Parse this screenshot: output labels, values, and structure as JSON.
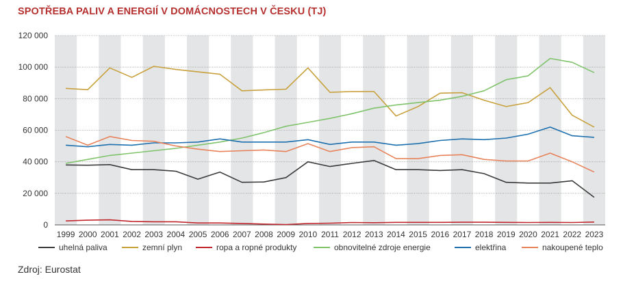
{
  "title": "SPOTŘEBA PALIV A ENERGIÍ V DOMÁCNOSTECH V ČESKU (TJ)",
  "source": "Zdroj: Eurostat",
  "chart_data": {
    "type": "line",
    "title": "SPOTŘEBA PALIV A ENERGIÍ V DOMÁCNOSTECH V ČESKU (TJ)",
    "xlabel": "",
    "ylabel": "",
    "ylim": [
      0,
      120000
    ],
    "yticks": [
      0,
      20000,
      40000,
      60000,
      80000,
      100000,
      120000
    ],
    "ytick_labels": [
      "0",
      "20 000",
      "40 000",
      "60 000",
      "80 000",
      "100 000",
      "120 000"
    ],
    "grid": "horizontal",
    "alternating_columns": true,
    "legend_position": "bottom",
    "x": [
      "1999",
      "2000",
      "2001",
      "2002",
      "2003",
      "2004",
      "2005",
      "2006",
      "2007",
      "2008",
      "2009",
      "2010",
      "2011",
      "2012",
      "2013",
      "2014",
      "2015",
      "2016",
      "2017",
      "2018",
      "2019",
      "2020",
      "2021",
      "2022",
      "2023"
    ],
    "series": [
      {
        "name": "uhelná paliva",
        "color": "#3a3a3a",
        "values": [
          38000,
          37800,
          38200,
          35000,
          35000,
          34000,
          29000,
          33500,
          27000,
          27200,
          30000,
          40000,
          37000,
          39000,
          40800,
          35000,
          35000,
          34500,
          35000,
          32500,
          27000,
          26500,
          26500,
          28000,
          17500
        ]
      },
      {
        "name": "zemní plyn",
        "color": "#c9a13c",
        "values": [
          86500,
          85700,
          99500,
          93500,
          100500,
          98500,
          97000,
          95500,
          85000,
          85500,
          86000,
          99500,
          84000,
          84500,
          84500,
          69000,
          75000,
          83500,
          83800,
          79000,
          75000,
          77500,
          87000,
          69500,
          62000
        ]
      },
      {
        "name": "ropa a ropné produkty",
        "color": "#c0272d",
        "values": [
          2500,
          3000,
          3200,
          2200,
          2000,
          2000,
          1200,
          1200,
          900,
          500,
          200,
          900,
          1100,
          1500,
          1400,
          1600,
          1600,
          1600,
          1700,
          1700,
          1600,
          1500,
          1600,
          1500,
          1800
        ]
      },
      {
        "name": "obnovitelné zdroje energie",
        "color": "#7fc36b",
        "values": [
          39000,
          41500,
          44000,
          45500,
          47000,
          48500,
          50500,
          52500,
          55000,
          58500,
          62500,
          65000,
          67500,
          70500,
          74000,
          76000,
          77500,
          79000,
          81500,
          85000,
          92000,
          94500,
          105500,
          103000,
          96500
        ]
      },
      {
        "name": "elektřina",
        "color": "#1d6fae",
        "values": [
          50500,
          49500,
          51000,
          50500,
          52000,
          52000,
          52500,
          54500,
          52500,
          52500,
          52500,
          54000,
          51000,
          52500,
          52500,
          50500,
          51500,
          53500,
          54500,
          54000,
          55000,
          57500,
          62000,
          56500,
          55500
        ]
      },
      {
        "name": "nakoupené teplo",
        "color": "#e8825a",
        "values": [
          56000,
          50500,
          56000,
          53500,
          53000,
          50000,
          48000,
          46500,
          47000,
          47500,
          46500,
          51500,
          46500,
          49000,
          49500,
          42000,
          42000,
          44000,
          44500,
          41500,
          40500,
          40500,
          45500,
          40000,
          33500
        ]
      }
    ]
  }
}
